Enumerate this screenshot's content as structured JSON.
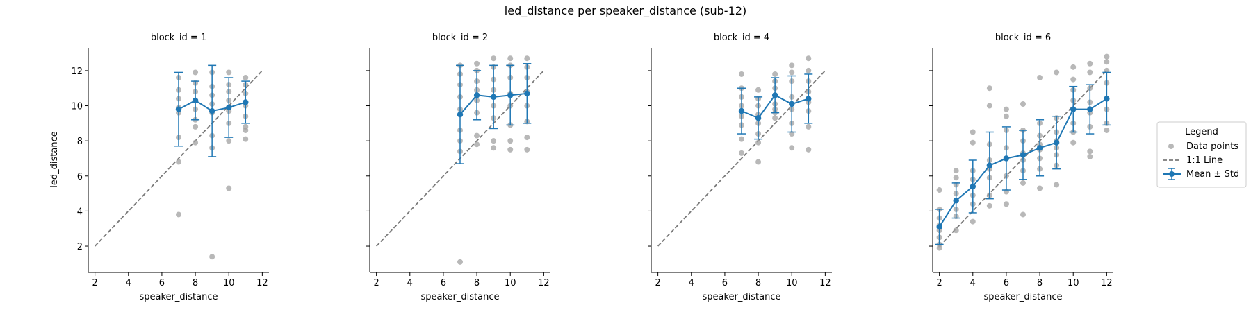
{
  "figure": {
    "title": "led_distance per speaker_distance (sub-12)",
    "ylabel": "led_distance",
    "xlabel": "speaker_distance"
  },
  "legend": {
    "title": "Legend",
    "entries": [
      "Data points",
      "1:1 Line",
      "Mean ± Std"
    ]
  },
  "colors": {
    "points": "#a0a0a0",
    "mean": "#1f77b4",
    "line": "#7a7a7a"
  },
  "chart_data": [
    {
      "type": "scatter",
      "title": "block_id = 1",
      "xlabel": "speaker_distance",
      "ylabel": "led_distance",
      "xlim": [
        1.6,
        12.4
      ],
      "ylim": [
        0.5,
        13.3
      ],
      "xticks": [
        2,
        4,
        6,
        8,
        10,
        12
      ],
      "yticks": [
        2,
        4,
        6,
        8,
        10,
        12
      ],
      "identity_line": [
        [
          2,
          2
        ],
        [
          12,
          12
        ]
      ],
      "points": [
        [
          7,
          11.6
        ],
        [
          7,
          10.9
        ],
        [
          7,
          10.4
        ],
        [
          7,
          9.9
        ],
        [
          7,
          9.6
        ],
        [
          7,
          8.2
        ],
        [
          7,
          6.8
        ],
        [
          7,
          3.8
        ],
        [
          8,
          11.9
        ],
        [
          8,
          11.3
        ],
        [
          8,
          10.8
        ],
        [
          8,
          10.3
        ],
        [
          8,
          9.8
        ],
        [
          8,
          9.2
        ],
        [
          8,
          8.8
        ],
        [
          8,
          7.9
        ],
        [
          9,
          11.9
        ],
        [
          9,
          11.1
        ],
        [
          9,
          10.6
        ],
        [
          9,
          10.1
        ],
        [
          9,
          9.6
        ],
        [
          9,
          8.3
        ],
        [
          9,
          7.6
        ],
        [
          9,
          1.4
        ],
        [
          10,
          11.9
        ],
        [
          10,
          11.2
        ],
        [
          10,
          10.8
        ],
        [
          10,
          10.3
        ],
        [
          10,
          9.7
        ],
        [
          10,
          9.0
        ],
        [
          10,
          8.0
        ],
        [
          10,
          5.3
        ],
        [
          11,
          11.6
        ],
        [
          11,
          11.2
        ],
        [
          11,
          10.7
        ],
        [
          11,
          10.0
        ],
        [
          11,
          9.4
        ],
        [
          11,
          8.8
        ],
        [
          11,
          8.6
        ],
        [
          11,
          8.1
        ]
      ],
      "mean": {
        "x": [
          7,
          8,
          9,
          10,
          11
        ],
        "y": [
          9.8,
          10.3,
          9.7,
          9.9,
          10.2
        ],
        "std": [
          2.1,
          1.1,
          2.6,
          1.7,
          1.2
        ]
      }
    },
    {
      "type": "scatter",
      "title": "block_id = 2",
      "xlabel": "speaker_distance",
      "ylabel": "",
      "xlim": [
        1.6,
        12.4
      ],
      "ylim": [
        0.5,
        13.3
      ],
      "xticks": [
        2,
        4,
        6,
        8,
        10,
        12
      ],
      "yticks": [
        2,
        4,
        6,
        8,
        10,
        12
      ],
      "identity_line": [
        [
          2,
          2
        ],
        [
          12,
          12
        ]
      ],
      "points": [
        [
          7,
          12.3
        ],
        [
          7,
          11.8
        ],
        [
          7,
          11.2
        ],
        [
          7,
          10.5
        ],
        [
          7,
          9.8
        ],
        [
          7,
          8.6
        ],
        [
          7,
          8.0
        ],
        [
          7,
          7.4
        ],
        [
          7,
          1.1
        ],
        [
          8,
          12.4
        ],
        [
          8,
          12.0
        ],
        [
          8,
          11.4
        ],
        [
          8,
          10.9
        ],
        [
          8,
          10.3
        ],
        [
          8,
          9.6
        ],
        [
          8,
          8.3
        ],
        [
          8,
          7.8
        ],
        [
          9,
          12.7
        ],
        [
          9,
          12.2
        ],
        [
          9,
          11.5
        ],
        [
          9,
          10.9
        ],
        [
          9,
          10.0
        ],
        [
          9,
          9.3
        ],
        [
          9,
          8.0
        ],
        [
          9,
          7.6
        ],
        [
          10,
          12.7
        ],
        [
          10,
          12.3
        ],
        [
          10,
          11.6
        ],
        [
          10,
          10.7
        ],
        [
          10,
          10.0
        ],
        [
          10,
          8.9
        ],
        [
          10,
          8.0
        ],
        [
          10,
          7.5
        ],
        [
          11,
          12.7
        ],
        [
          11,
          12.2
        ],
        [
          11,
          11.6
        ],
        [
          11,
          10.8
        ],
        [
          11,
          10.0
        ],
        [
          11,
          9.1
        ],
        [
          11,
          8.2
        ],
        [
          11,
          7.5
        ]
      ],
      "mean": {
        "x": [
          7,
          8,
          9,
          10,
          11
        ],
        "y": [
          9.5,
          10.6,
          10.5,
          10.6,
          10.7
        ],
        "std": [
          2.8,
          1.4,
          1.8,
          1.7,
          1.7
        ]
      }
    },
    {
      "type": "scatter",
      "title": "block_id = 4",
      "xlabel": "speaker_distance",
      "ylabel": "",
      "xlim": [
        1.6,
        12.4
      ],
      "ylim": [
        0.5,
        13.3
      ],
      "xticks": [
        2,
        4,
        6,
        8,
        10,
        12
      ],
      "yticks": [
        2,
        4,
        6,
        8,
        10,
        12
      ],
      "identity_line": [
        [
          2,
          2
        ],
        [
          12,
          12
        ]
      ],
      "points": [
        [
          7,
          11.8
        ],
        [
          7,
          11.0
        ],
        [
          7,
          10.5
        ],
        [
          7,
          10.0
        ],
        [
          7,
          9.4
        ],
        [
          7,
          8.9
        ],
        [
          7,
          8.1
        ],
        [
          7,
          7.3
        ],
        [
          8,
          10.9
        ],
        [
          8,
          10.4
        ],
        [
          8,
          10.0
        ],
        [
          8,
          9.5
        ],
        [
          8,
          9.0
        ],
        [
          8,
          8.4
        ],
        [
          8,
          7.9
        ],
        [
          8,
          6.8
        ],
        [
          9,
          11.8
        ],
        [
          9,
          11.4
        ],
        [
          9,
          11.0
        ],
        [
          9,
          10.6
        ],
        [
          9,
          10.1
        ],
        [
          9,
          9.8
        ],
        [
          9,
          9.6
        ],
        [
          9,
          9.3
        ],
        [
          10,
          12.3
        ],
        [
          10,
          11.9
        ],
        [
          10,
          11.4
        ],
        [
          10,
          10.5
        ],
        [
          10,
          9.8
        ],
        [
          10,
          9.0
        ],
        [
          10,
          8.4
        ],
        [
          10,
          7.6
        ],
        [
          11,
          12.7
        ],
        [
          11,
          12.0
        ],
        [
          11,
          11.4
        ],
        [
          11,
          10.8
        ],
        [
          11,
          10.2
        ],
        [
          11,
          9.7
        ],
        [
          11,
          8.8
        ],
        [
          11,
          7.5
        ]
      ],
      "mean": {
        "x": [
          7,
          8,
          9,
          10,
          11
        ],
        "y": [
          9.7,
          9.3,
          10.6,
          10.1,
          10.4
        ],
        "std": [
          1.3,
          1.2,
          1.0,
          1.6,
          1.4
        ]
      }
    },
    {
      "type": "scatter",
      "title": "block_id = 6",
      "xlabel": "speaker_distance",
      "ylabel": "",
      "xlim": [
        1.6,
        12.4
      ],
      "ylim": [
        0.5,
        13.3
      ],
      "xticks": [
        2,
        4,
        6,
        8,
        10,
        12
      ],
      "yticks": [
        2,
        4,
        6,
        8,
        10,
        12
      ],
      "identity_line": [
        [
          2,
          2
        ],
        [
          12,
          12
        ]
      ],
      "points": [
        [
          2,
          5.2
        ],
        [
          2,
          4.1
        ],
        [
          2,
          3.6
        ],
        [
          2,
          3.2
        ],
        [
          2,
          2.9
        ],
        [
          2,
          2.5
        ],
        [
          2,
          2.1
        ],
        [
          2,
          1.9
        ],
        [
          3,
          6.3
        ],
        [
          3,
          5.9
        ],
        [
          3,
          5.5
        ],
        [
          3,
          5.0
        ],
        [
          3,
          4.6
        ],
        [
          3,
          4.1
        ],
        [
          3,
          3.7
        ],
        [
          3,
          2.9
        ],
        [
          4,
          8.5
        ],
        [
          4,
          7.9
        ],
        [
          4,
          6.3
        ],
        [
          4,
          5.8
        ],
        [
          4,
          5.4
        ],
        [
          4,
          4.9
        ],
        [
          4,
          4.4
        ],
        [
          4,
          3.4
        ],
        [
          5,
          11.0
        ],
        [
          5,
          10.0
        ],
        [
          5,
          7.8
        ],
        [
          5,
          6.9
        ],
        [
          5,
          6.4
        ],
        [
          5,
          5.9
        ],
        [
          5,
          4.9
        ],
        [
          5,
          4.3
        ],
        [
          6,
          9.8
        ],
        [
          6,
          9.4
        ],
        [
          6,
          8.6
        ],
        [
          6,
          7.6
        ],
        [
          6,
          7.0
        ],
        [
          6,
          6.0
        ],
        [
          6,
          5.1
        ],
        [
          6,
          4.4
        ],
        [
          7,
          10.1
        ],
        [
          7,
          8.6
        ],
        [
          7,
          8.0
        ],
        [
          7,
          7.3
        ],
        [
          7,
          6.9
        ],
        [
          7,
          6.3
        ],
        [
          7,
          5.6
        ],
        [
          7,
          3.8
        ],
        [
          8,
          11.6
        ],
        [
          8,
          9.0
        ],
        [
          8,
          8.3
        ],
        [
          8,
          7.8
        ],
        [
          8,
          7.5
        ],
        [
          8,
          7.0
        ],
        [
          8,
          6.4
        ],
        [
          8,
          5.3
        ],
        [
          9,
          11.9
        ],
        [
          9,
          9.3
        ],
        [
          9,
          8.5
        ],
        [
          9,
          8.0
        ],
        [
          9,
          7.6
        ],
        [
          9,
          7.2
        ],
        [
          9,
          6.6
        ],
        [
          9,
          5.5
        ],
        [
          10,
          12.2
        ],
        [
          10,
          11.5
        ],
        [
          10,
          10.9
        ],
        [
          10,
          10.3
        ],
        [
          10,
          9.8
        ],
        [
          10,
          9.0
        ],
        [
          10,
          8.5
        ],
        [
          10,
          7.9
        ],
        [
          11,
          12.4
        ],
        [
          11,
          11.9
        ],
        [
          11,
          11.0
        ],
        [
          11,
          10.2
        ],
        [
          11,
          9.6
        ],
        [
          11,
          8.8
        ],
        [
          11,
          7.4
        ],
        [
          11,
          7.1
        ],
        [
          12,
          12.8
        ],
        [
          12,
          12.5
        ],
        [
          12,
          12.0
        ],
        [
          12,
          11.3
        ],
        [
          12,
          10.4
        ],
        [
          12,
          9.8
        ],
        [
          12,
          9.0
        ],
        [
          12,
          8.6
        ]
      ],
      "mean": {
        "x": [
          2,
          3,
          4,
          5,
          6,
          7,
          8,
          9,
          10,
          11,
          12
        ],
        "y": [
          3.1,
          4.6,
          5.4,
          6.6,
          7.0,
          7.2,
          7.6,
          7.9,
          9.8,
          9.8,
          10.4
        ],
        "std": [
          1.0,
          1.0,
          1.5,
          1.9,
          1.8,
          1.4,
          1.6,
          1.5,
          1.3,
          1.4,
          1.5
        ]
      }
    }
  ]
}
